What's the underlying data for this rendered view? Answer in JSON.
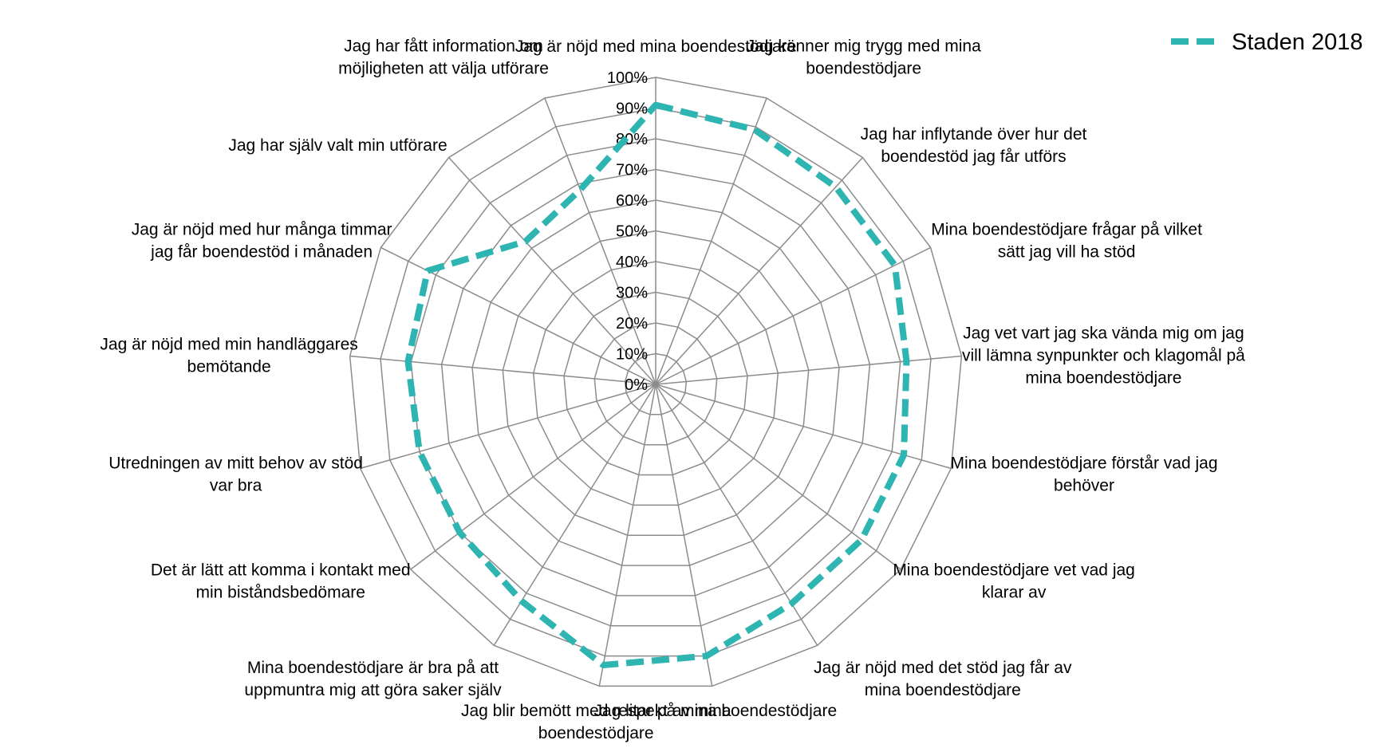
{
  "chart_data": {
    "type": "radar",
    "categories": [
      "Jag är nöjd med mina boendestödjare",
      "Jag känner mig trygg med mina boendestödjare",
      "Jag har inflytande över hur det boendestöd jag får utförs",
      "Mina boendestödjare frågar på vilket sätt jag vill ha stöd",
      "Jag vet vart jag ska vända mig om jag vill lämna synpunkter och klagomål på mina boendestödjare",
      "Mina boendestödjare förstår vad jag behöver",
      "Mina boendestödjare vet vad jag klarar av",
      "Jag är nöjd med det stöd jag får av mina boendestödjare",
      "Jag litar på mina boendestödjare",
      "Jag blir bemött med respekt av mina boendestödjare",
      "Mina boendestödjare är bra på att uppmuntra mig att göra saker själv",
      "Det är lätt att komma i kontakt med min biståndsbedömare",
      "Utredningen av mitt behov av stöd var bra",
      "Jag är nöjd med min handläggares bemötande",
      "Jag är nöjd med hur många timmar jag får boendestöd i månaden",
      "Jag har själv valt min utförare",
      "Jag har fått information om möjligheten att välja utförare"
    ],
    "category_lines": [
      [
        "Jag är nöjd med mina boendestödjare"
      ],
      [
        "Jag känner mig trygg med mina",
        "boendestödjare"
      ],
      [
        "Jag har inflytande över hur det",
        "boendestöd jag får utförs"
      ],
      [
        "Mina boendestödjare frågar på vilket",
        "sätt jag vill ha stöd"
      ],
      [
        "Jag vet vart jag ska vända mig om jag",
        "vill lämna synpunkter och klagomål på",
        "mina boendestödjare"
      ],
      [
        "Mina boendestödjare förstår vad jag",
        "behöver"
      ],
      [
        "Mina boendestödjare vet vad jag",
        "klarar av"
      ],
      [
        "Jag är nöjd med det stöd jag får av",
        "mina boendestödjare"
      ],
      [
        "Jag litar på mina boendestödjare"
      ],
      [
        "Jag blir bemött med respekt av mina",
        "boendestödjare"
      ],
      [
        "Mina boendestödjare är bra på att",
        "uppmuntra mig att göra saker själv"
      ],
      [
        "Det är lätt att komma i kontakt med",
        "min biståndsbedömare"
      ],
      [
        "Utredningen av mitt behov av stöd",
        "var bra"
      ],
      [
        "Jag är nöjd med min handläggares",
        "bemötande"
      ],
      [
        "Jag är nöjd med hur många timmar",
        "jag får boendestöd i månaden"
      ],
      [
        "Jag har själv valt min utförare"
      ],
      [
        "Jag har fått information om",
        "möjligheten att välja utförare"
      ]
    ],
    "ticks": [
      "0%",
      "10%",
      "20%",
      "30%",
      "40%",
      "50%",
      "60%",
      "70%",
      "80%",
      "90%",
      "100%"
    ],
    "tick_values": [
      0,
      10,
      20,
      30,
      40,
      50,
      60,
      70,
      80,
      90,
      100
    ],
    "range": [
      0,
      100
    ],
    "grid": true,
    "legend_position": "top-right",
    "series": [
      {
        "name": "Staden 2018",
        "color": "#2eb5b1",
        "style": "dashed",
        "values": [
          91,
          89,
          87,
          87,
          82,
          84,
          84,
          84,
          90,
          93,
          83,
          80,
          80,
          81,
          83,
          63,
          68
        ]
      }
    ],
    "colors": {
      "grid": "#8c8c8c",
      "series": "#2eb5b1"
    }
  }
}
